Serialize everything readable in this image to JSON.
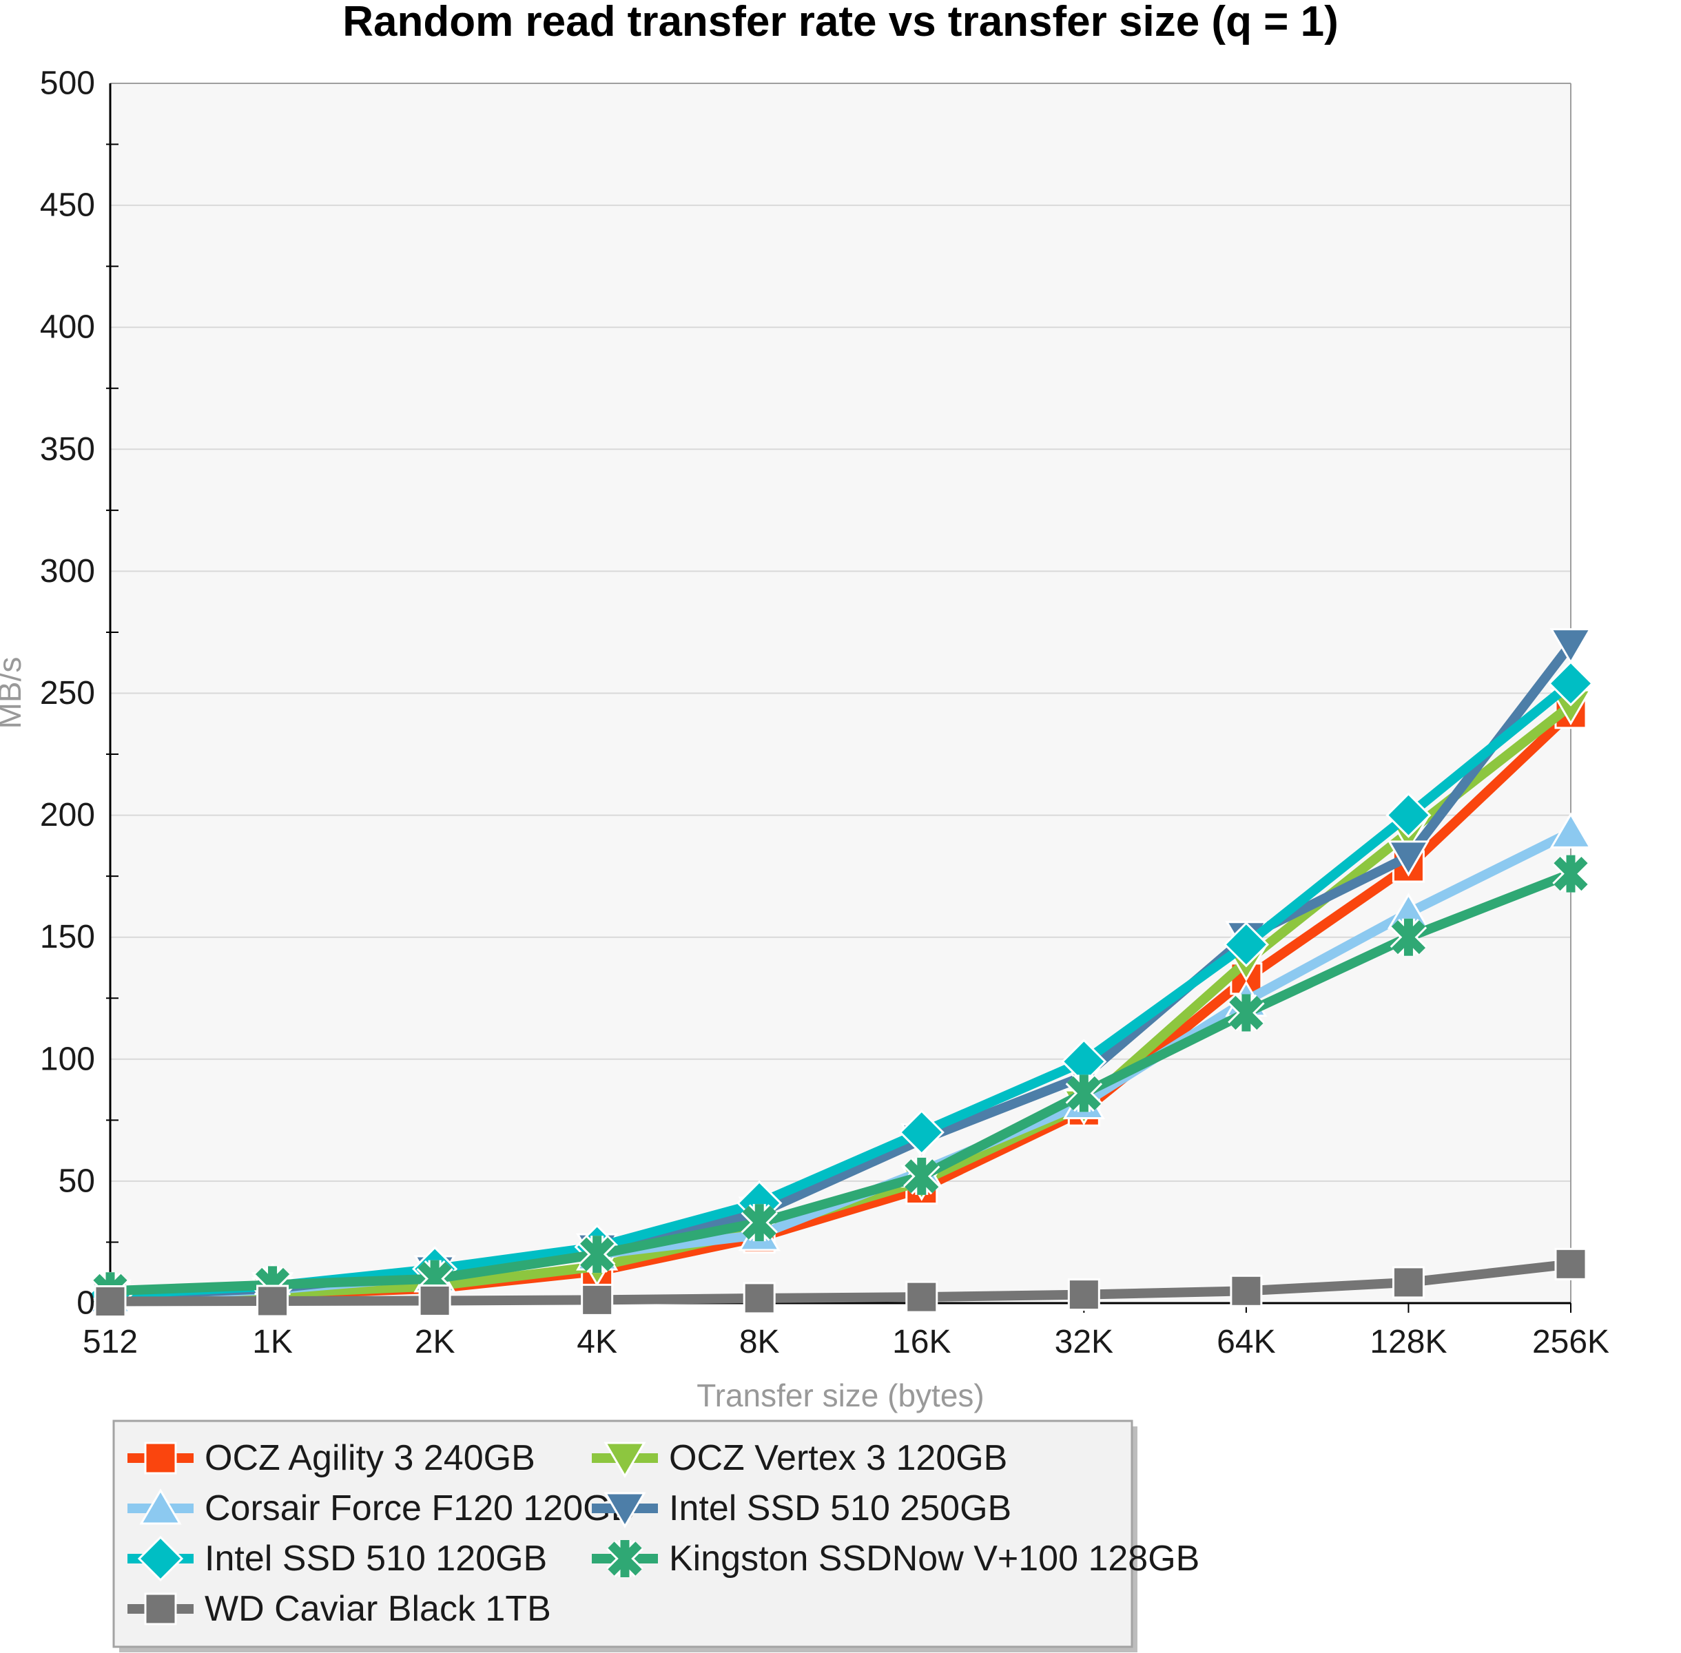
{
  "title": "Random read transfer rate vs transfer size (q = 1)",
  "chart_data": {
    "type": "line",
    "title": "Random read transfer rate vs transfer size (q = 1)",
    "xlabel": "Transfer size (bytes)",
    "ylabel": "MB/s",
    "ylim": [
      0,
      500
    ],
    "y_tick_step": 50,
    "y_minor_tick_step": 25,
    "grid": true,
    "legend_position": "bottom-left",
    "categories": [
      "512",
      "1K",
      "2K",
      "4K",
      "8K",
      "16K",
      "32K",
      "64K",
      "128K",
      "256K"
    ],
    "series": [
      {
        "name": "OCZ Agility 3 240GB",
        "color": "#FA450E",
        "marker": "square",
        "values": [
          1.5,
          3.5,
          6,
          13,
          27,
          47,
          79,
          133,
          179,
          242
        ]
      },
      {
        "name": "OCZ Vertex 3 120GB",
        "color": "#8DC63F",
        "marker": "triangle-down",
        "values": [
          2,
          4,
          7,
          15,
          30,
          50,
          81,
          140,
          193,
          245
        ]
      },
      {
        "name": "Corsair Force F120 120GB",
        "color": "#8CC9F0",
        "marker": "triangle-up",
        "values": [
          2.5,
          5.5,
          11,
          20,
          28,
          54,
          82,
          124,
          160,
          193
        ]
      },
      {
        "name": "Intel SSD 510 250GB",
        "color": "#4D7EA8",
        "marker": "triangle-down",
        "values": [
          3,
          6,
          13,
          22,
          37,
          67,
          93,
          150,
          183,
          270
        ]
      },
      {
        "name": "Intel SSD 510 120GB",
        "color": "#00BEC4",
        "marker": "diamond",
        "values": [
          3.5,
          7,
          14,
          23,
          41,
          70,
          99,
          147,
          200,
          254
        ]
      },
      {
        "name": "Kingston SSDNow V+100 128GB",
        "color": "#2FA874",
        "marker": "asterisk",
        "values": [
          5,
          7.5,
          10,
          20,
          33,
          52,
          86,
          119,
          150,
          176
        ]
      },
      {
        "name": "WD Caviar Black 1TB",
        "color": "#757575",
        "marker": "square",
        "values": [
          0.7,
          0.85,
          1,
          1.3,
          2,
          2.5,
          3.5,
          5,
          8.5,
          16
        ]
      }
    ],
    "colors": {
      "plot_background": "#f7f7f7",
      "gridline": "#d9d9d9",
      "axis": "#000000",
      "plot_border": "#9e9e9e",
      "tick_label": "#1a1a1a",
      "axis_title": "#999999",
      "legend_background": "#f2f2f2",
      "legend_border": "#a3a3a3",
      "legend_shadow": "#bdbdbd",
      "legend_text": "#1a1a1a"
    }
  }
}
